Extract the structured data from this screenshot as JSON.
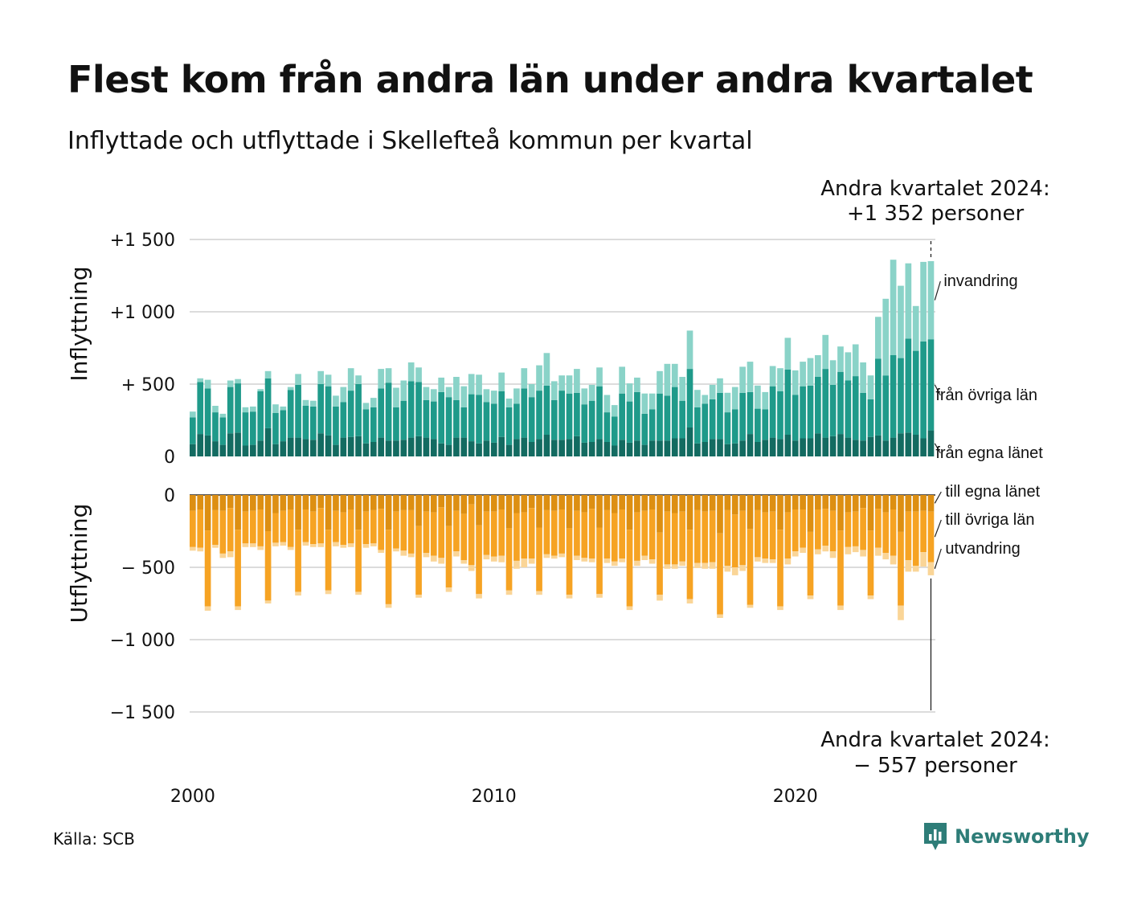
{
  "title": "Flest kom från andra län under andra kvartalet",
  "subtitle": "Inflyttade och utflyttade i Skellefteå kommun per kvartal",
  "source": "Källa: SCB",
  "brand": "Newsworthy",
  "callouts": {
    "top_line1": "Andra kvartalet 2024:",
    "top_line2": "+1 352 personer",
    "bottom_line1": "Andra kvartalet 2024:",
    "bottom_line2": "−  557 personer"
  },
  "colors": {
    "in_egna": "#136b61",
    "in_ovriga": "#1f9a8a",
    "in_invandring": "#8ad3c8",
    "ut_egna": "#dd8f12",
    "ut_ovriga": "#f6a323",
    "ut_utvandring": "#fad597",
    "brand": "#2e7d78"
  },
  "chart_data": {
    "type": "bar",
    "stacked": true,
    "grid": true,
    "x_start": "2000 Q1",
    "x_end": "2024 Q2",
    "x_ticks": [
      "2000",
      "2010",
      "2020"
    ],
    "panels": [
      {
        "ylabel": "Inflyttning",
        "ylim": [
          0,
          1500
        ],
        "yticks": [
          0,
          500,
          1000,
          1500
        ],
        "ytick_labels": [
          "0",
          "+  500",
          "+1 000",
          "+1 500"
        ],
        "series": [
          {
            "name": "från egna länet",
            "values": [
              85,
              155,
              145,
              105,
              80,
              160,
              165,
              75,
              80,
              110,
              195,
              85,
              105,
              130,
              130,
              120,
              115,
              160,
              145,
              80,
              130,
              135,
              140,
              90,
              100,
              130,
              110,
              110,
              115,
              130,
              140,
              130,
              120,
              90,
              80,
              130,
              130,
              105,
              90,
              110,
              95,
              135,
              80,
              120,
              130,
              100,
              120,
              150,
              115,
              115,
              120,
              140,
              95,
              100,
              120,
              100,
              75,
              115,
              95,
              110,
              80,
              110,
              110,
              110,
              125,
              125,
              200,
              90,
              100,
              120,
              120,
              85,
              90,
              110,
              155,
              100,
              115,
              130,
              120,
              150,
              110,
              125,
              125,
              160,
              130,
              140,
              155,
              130,
              115,
              110,
              135,
              145,
              110,
              130,
              160,
              165,
              150,
              125,
              180
            ]
          },
          {
            "name": "från övriga län",
            "values": [
              185,
              360,
              325,
              200,
              190,
              320,
              340,
              230,
              230,
              340,
              345,
              215,
              215,
              330,
              365,
              230,
              230,
              340,
              340,
              265,
              245,
              320,
              360,
              235,
              240,
              340,
              400,
              230,
              270,
              390,
              375,
              260,
              260,
              355,
              330,
              260,
              210,
              325,
              335,
              265,
              270,
              315,
              260,
              245,
              340,
              310,
              335,
              340,
              275,
              340,
              315,
              300,
              265,
              285,
              365,
              205,
              200,
              320,
              285,
              335,
              215,
              215,
              325,
              310,
              355,
              260,
              405,
              250,
              265,
              275,
              320,
              220,
              235,
              330,
              290,
              230,
              210,
              355,
              330,
              450,
              315,
              360,
              365,
              390,
              475,
              355,
              430,
              395,
              440,
              330,
              260,
              530,
              450,
              570,
              520,
              650,
              580,
              670,
              630
            ]
          },
          {
            "name": "invandring",
            "values": [
              40,
              25,
              60,
              45,
              25,
              45,
              30,
              35,
              35,
              15,
              50,
              60,
              25,
              20,
              75,
              40,
              40,
              90,
              80,
              75,
              105,
              155,
              60,
              45,
              65,
              135,
              100,
              135,
              140,
              130,
              100,
              90,
              85,
              100,
              70,
              160,
              145,
              140,
              140,
              90,
              90,
              130,
              60,
              105,
              140,
              90,
              175,
              225,
              130,
              105,
              125,
              165,
              110,
              110,
              130,
              120,
              80,
              185,
              125,
              100,
              140,
              110,
              155,
              220,
              160,
              165,
              265,
              120,
              60,
              100,
              100,
              135,
              155,
              180,
              210,
              160,
              120,
              140,
              160,
              220,
              170,
              170,
              190,
              150,
              235,
              170,
              175,
              195,
              220,
              210,
              165,
              290,
              530,
              660,
              500,
              520,
              310,
              550,
              540
            ]
          }
        ]
      },
      {
        "ylabel": "Utflyttning",
        "ylim": [
          -1500,
          0
        ],
        "yticks": [
          0,
          -500,
          -1000,
          -1500
        ],
        "ytick_labels": [
          "0",
          "−  500",
          "−1 000",
          "−1 500"
        ],
        "series": [
          {
            "name": "till egna länet",
            "values": [
              -110,
              -100,
              -245,
              -105,
              -110,
              -90,
              -240,
              -115,
              -110,
              -100,
              -250,
              -125,
              -110,
              -100,
              -240,
              -100,
              -115,
              -90,
              -240,
              -110,
              -120,
              -100,
              -240,
              -115,
              -105,
              -95,
              -240,
              -115,
              -105,
              -105,
              -215,
              -115,
              -120,
              -85,
              -215,
              -110,
              -130,
              -65,
              -210,
              -115,
              -115,
              -100,
              -230,
              -125,
              -120,
              -90,
              -225,
              -105,
              -110,
              -100,
              -230,
              -110,
              -120,
              -95,
              -225,
              -105,
              -125,
              -100,
              -240,
              -120,
              -110,
              -100,
              -260,
              -115,
              -125,
              -115,
              -240,
              -105,
              -115,
              -110,
              -265,
              -105,
              -135,
              -110,
              -235,
              -105,
              -120,
              -115,
              -240,
              -120,
              -100,
              -100,
              -255,
              -100,
              -95,
              -110,
              -245,
              -120,
              -115,
              -90,
              -245,
              -95,
              -120,
              -100,
              -255,
              -115,
              -115,
              -110,
              -115
            ]
          },
          {
            "name": "till övriga län",
            "values": [
              -250,
              -265,
              -525,
              -240,
              -295,
              -300,
              -530,
              -220,
              -225,
              -255,
              -480,
              -205,
              -215,
              -260,
              -430,
              -225,
              -225,
              -245,
              -420,
              -215,
              -225,
              -235,
              -430,
              -225,
              -230,
              -285,
              -515,
              -255,
              -280,
              -300,
              -475,
              -285,
              -300,
              -350,
              -425,
              -280,
              -320,
              -420,
              -475,
              -300,
              -310,
              -320,
              -430,
              -330,
              -320,
              -350,
              -440,
              -305,
              -310,
              -305,
              -460,
              -310,
              -315,
              -345,
              -460,
              -335,
              -335,
              -340,
              -530,
              -335,
              -310,
              -345,
              -430,
              -365,
              -355,
              -345,
              -480,
              -365,
              -355,
              -355,
              -560,
              -385,
              -365,
              -375,
              -525,
              -325,
              -320,
              -330,
              -530,
              -320,
              -290,
              -265,
              -440,
              -275,
              -255,
              -280,
              -520,
              -240,
              -240,
              -290,
              -450,
              -270,
              -280,
              -320,
              -510,
              -335,
              -375,
              -285,
              -350
            ]
          },
          {
            "name": "utvandring",
            "values": [
              -25,
              -25,
              -30,
              -20,
              -30,
              -40,
              -25,
              -25,
              -25,
              -25,
              -20,
              -25,
              -25,
              -20,
              -25,
              -25,
              -20,
              -25,
              -25,
              -30,
              -20,
              -25,
              -20,
              -25,
              -20,
              -20,
              -25,
              -20,
              -35,
              -25,
              -20,
              -30,
              -40,
              -40,
              -30,
              -35,
              -25,
              -40,
              -30,
              -30,
              -35,
              -45,
              -30,
              -55,
              -60,
              -35,
              -25,
              -25,
              -20,
              -25,
              -25,
              -30,
              -25,
              -25,
              -25,
              -30,
              -30,
              -25,
              -25,
              -35,
              -30,
              -30,
              -40,
              -30,
              -30,
              -30,
              -30,
              -35,
              -40,
              -45,
              -25,
              -40,
              -55,
              -40,
              -20,
              -30,
              -30,
              -25,
              -25,
              -40,
              -35,
              -35,
              -25,
              -35,
              -40,
              -45,
              -30,
              -50,
              -40,
              -45,
              -25,
              -55,
              -45,
              -60,
              -100,
              -80,
              -40,
              -100,
              -90
            ]
          }
        ]
      }
    ],
    "annotation": {
      "date": "2024 Q2",
      "inflow_total": 1352,
      "outflow_total": -557
    }
  }
}
